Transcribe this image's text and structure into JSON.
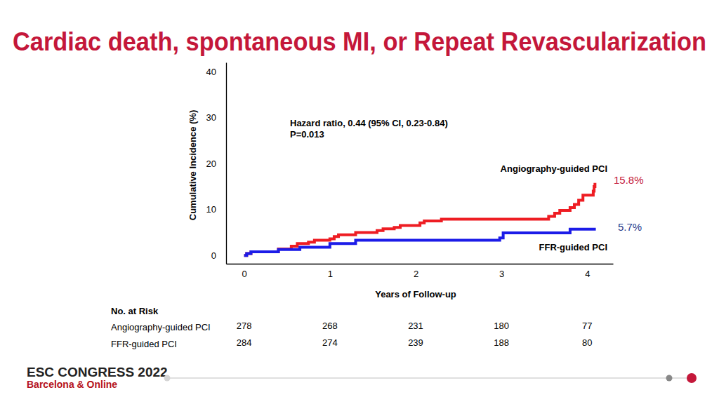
{
  "chart_data": {
    "type": "line",
    "title": "Cardiac death, spontaneous MI, or Repeat Revascularization",
    "x_label": "Years of Follow-up",
    "y_label": "Cumulative Incidence (%)",
    "xlim": [
      -0.21,
      4.3
    ],
    "ylim": [
      -1.8,
      42
    ],
    "xticks": [
      0,
      1,
      2,
      3,
      4
    ],
    "yticks": [
      0,
      10,
      20,
      30,
      40
    ],
    "grid": false,
    "line_style": "step",
    "annotations": [
      "Hazard ratio, 0.44 (95% CI, 0.23-0.84)",
      "P=0.013"
    ],
    "series": [
      {
        "name": "Angiography-guided PCI",
        "color": "#ee1d23",
        "end_label": "15.8%",
        "x": [
          0,
          0.03,
          0.08,
          0.4,
          0.55,
          0.62,
          0.75,
          0.82,
          1.0,
          1.05,
          1.1,
          1.3,
          1.55,
          1.62,
          1.75,
          1.82,
          2.05,
          2.1,
          2.3,
          3.55,
          3.62,
          3.68,
          3.8,
          3.85,
          3.9,
          3.95,
          4.07,
          4.08,
          4.09
        ],
        "values": [
          0,
          0.4,
          0.8,
          1.4,
          2.0,
          2.6,
          2.9,
          3.3,
          3.6,
          4.1,
          4.5,
          5.0,
          5.4,
          5.8,
          6.1,
          6.5,
          7.1,
          7.5,
          7.9,
          8.5,
          9.2,
          9.8,
          10.4,
          11.1,
          12.0,
          13.1,
          14.0,
          15.0,
          15.8
        ]
      },
      {
        "name": "FFR-guided PCI",
        "color": "#1c1ce8",
        "end_label": "5.7%",
        "x": [
          0,
          0.03,
          0.08,
          0.4,
          0.65,
          1.0,
          1.3,
          2.98,
          3.02,
          3.8,
          4.1
        ],
        "values": [
          0,
          0.4,
          0.8,
          1.3,
          1.8,
          2.6,
          3.3,
          3.8,
          4.9,
          5.7,
          5.7
        ]
      }
    ],
    "risk_table": {
      "title": "No. at Risk",
      "rows": [
        {
          "name": "Angiography-guided PCI",
          "values": [
            278,
            268,
            231,
            180,
            77
          ]
        },
        {
          "name": "FFR-guided PCI",
          "values": [
            284,
            274,
            239,
            188,
            80
          ]
        }
      ]
    },
    "footer": [
      "ESC CONGRESS 2022",
      "Barcelona & Online"
    ]
  }
}
